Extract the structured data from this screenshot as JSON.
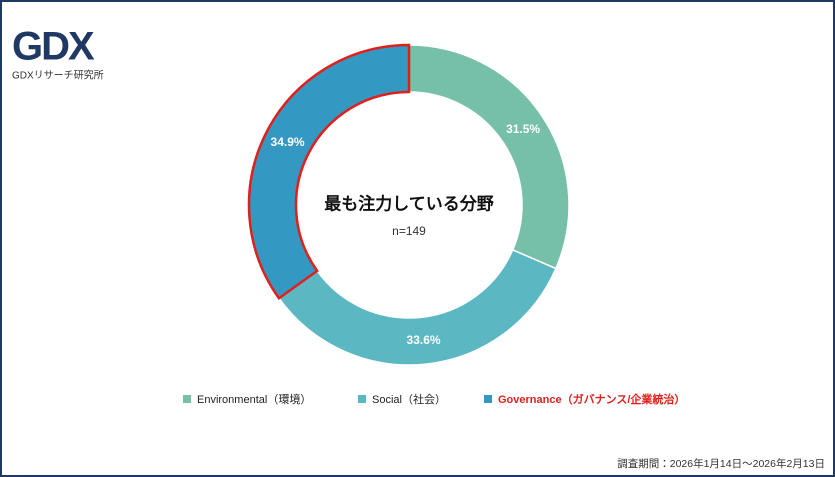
{
  "logo": {
    "mark": "GDX",
    "name": "GDXリサーチ研究所"
  },
  "chart_data": {
    "type": "donut",
    "title": "最も注力している分野",
    "subtitle": "n=149",
    "categories": [
      "Environmental（環境）",
      "Social（社会）",
      "Governance（ガバナンス/企業統治）"
    ],
    "values": [
      31.5,
      33.6,
      34.9
    ],
    "value_labels": [
      "31.5%",
      "33.6%",
      "34.9%"
    ],
    "colors": [
      "#76bfa8",
      "#5bb8c3",
      "#3399c3"
    ],
    "highlight": 2,
    "highlight_color": "#e0201c"
  },
  "footer": "調査期間：2026年1月14日～2026年2月13日"
}
